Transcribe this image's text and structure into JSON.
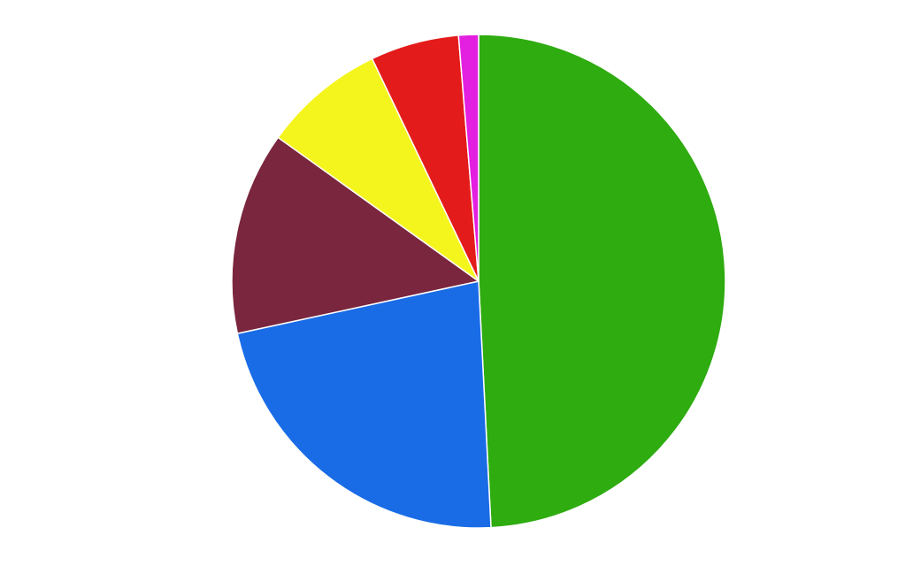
{
  "chart_data": {
    "type": "pie",
    "values": [
      49.2,
      22.4,
      13.3,
      8.0,
      5.8,
      1.3
    ],
    "colors": [
      "#2eac10",
      "#1a6ce6",
      "#7a263e",
      "#f5f51e",
      "#e41b1b",
      "#e31fe0"
    ]
  }
}
